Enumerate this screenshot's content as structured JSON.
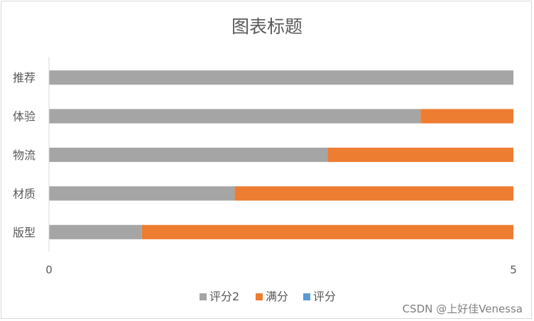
{
  "chart_data": {
    "type": "bar",
    "orientation": "horizontal",
    "stacked": true,
    "title": "图表标题",
    "categories": [
      "推荐",
      "体验",
      "物流",
      "材质",
      "版型"
    ],
    "series": [
      {
        "name": "评分2",
        "color": "#a5a5a5",
        "values": [
          5,
          4,
          3,
          2,
          1
        ]
      },
      {
        "name": "满分",
        "color": "#ed7d31",
        "values": [
          0,
          1,
          2,
          3,
          4
        ]
      },
      {
        "name": "评分",
        "color": "#5b9bd5",
        "values": [
          0,
          0,
          0,
          0,
          0
        ]
      }
    ],
    "xlim": [
      0,
      5
    ],
    "xticks": [
      "0",
      "5"
    ],
    "grid": false,
    "legend_position": "bottom"
  },
  "watermark": "CSDN @上好佳Venessa"
}
